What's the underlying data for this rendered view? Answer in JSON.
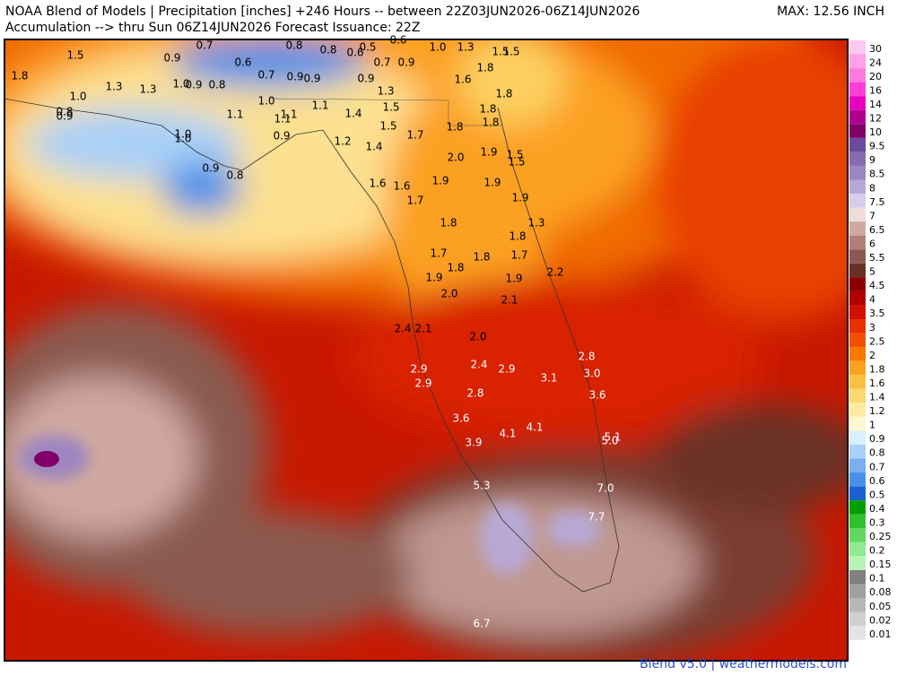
{
  "header": {
    "title": "NOAA Blend of Models | Precipitation [inches] +246 Hours -- between 22Z03JUN2026-06Z14JUN2026",
    "subtitle": "Accumulation --> thru Sun 06Z14JUN2026   Forecast Issuance: 22Z",
    "max": "MAX: 12.56 INCH"
  },
  "map": {
    "labels": [
      "1.8",
      "1.5",
      "0.9",
      "0.7",
      "0.6",
      "0.8",
      "0.8",
      "0.6",
      "0.5",
      "0.6",
      "0.7",
      "0.9",
      "1.0",
      "1.3",
      "1.5",
      "1.5",
      "0.7",
      "0.9",
      "0.9",
      "0.9",
      "1.8",
      "1.6",
      "1.8",
      "1.0",
      "1.3",
      "1.3",
      "1.0",
      "0.9",
      "0.8",
      "1.3",
      "0.8",
      "0.9",
      "1.0",
      "1.1",
      "1.4",
      "1.5",
      "1.8",
      "1.1",
      "1.1",
      "1.1",
      "1.5",
      "1.8",
      "1.8",
      "1.0",
      "1.0",
      "0.9",
      "1.7",
      "1.2",
      "1.4",
      "2.0",
      "1.9",
      "1.5",
      "1.5",
      "0.9",
      "0.8",
      "1.6",
      "1.6",
      "1.9",
      "1.9",
      "1.7",
      "1.9",
      "1.8",
      "1.3",
      "1.8",
      "1.7",
      "1.8",
      "1.7",
      "1.8",
      "2.2",
      "1.9",
      "1.9",
      "2.0",
      "2.1",
      "2.4",
      "2.1",
      "2.0",
      "2.8",
      "2.9",
      "2.4",
      "2.9",
      "3.0",
      "3.1",
      "2.9",
      "2.8",
      "3.6",
      "3.6",
      "4.1",
      "4.1",
      "5.1",
      "5.0",
      "3.9",
      "5.3",
      "7.0",
      "7.7",
      "6.7"
    ]
  },
  "colorbar": {
    "labels": [
      "30",
      "24",
      "20",
      "16",
      "14",
      "12",
      "10",
      "9.5",
      "9",
      "8.5",
      "8",
      "7.5",
      "7",
      "6.5",
      "6",
      "5.5",
      "5",
      "4.5",
      "4",
      "3.5",
      "3",
      "2.5",
      "2",
      "1.8",
      "1.6",
      "1.4",
      "1.2",
      "1",
      "0.9",
      "0.8",
      "0.7",
      "0.6",
      "0.5",
      "0.4",
      "0.3",
      "0.25",
      "0.2",
      "0.15",
      "0.1",
      "0.08",
      "0.05",
      "0.02",
      "0.01"
    ],
    "colors": [
      "#ffc8f0",
      "#ffa0e8",
      "#ff78e0",
      "#ff40d8",
      "#e800c0",
      "#b00090",
      "#800068",
      "#6a4a9a",
      "#8a6ab0",
      "#9e86c0",
      "#b8a8d4",
      "#d8ccea",
      "#f0dcd8",
      "#d0a8a0",
      "#b08078",
      "#8a5a50",
      "#6a3028",
      "#8a0000",
      "#b00000",
      "#d01000",
      "#e83000",
      "#f05000",
      "#f87800",
      "#fca020",
      "#fcc040",
      "#fcd870",
      "#fdeca0",
      "#fff8d0",
      "#d8f0ff",
      "#a8d0f8",
      "#78b0f0",
      "#4890e8",
      "#1a60d0",
      "#00a000",
      "#30c030",
      "#60d860",
      "#90ea90",
      "#b8f4b8",
      "#808080",
      "#a0a0a0",
      "#b8b8b8",
      "#d0d0d0",
      "#e4e4e4"
    ]
  },
  "footer": "Blend v5.0 | weathermodels.com"
}
